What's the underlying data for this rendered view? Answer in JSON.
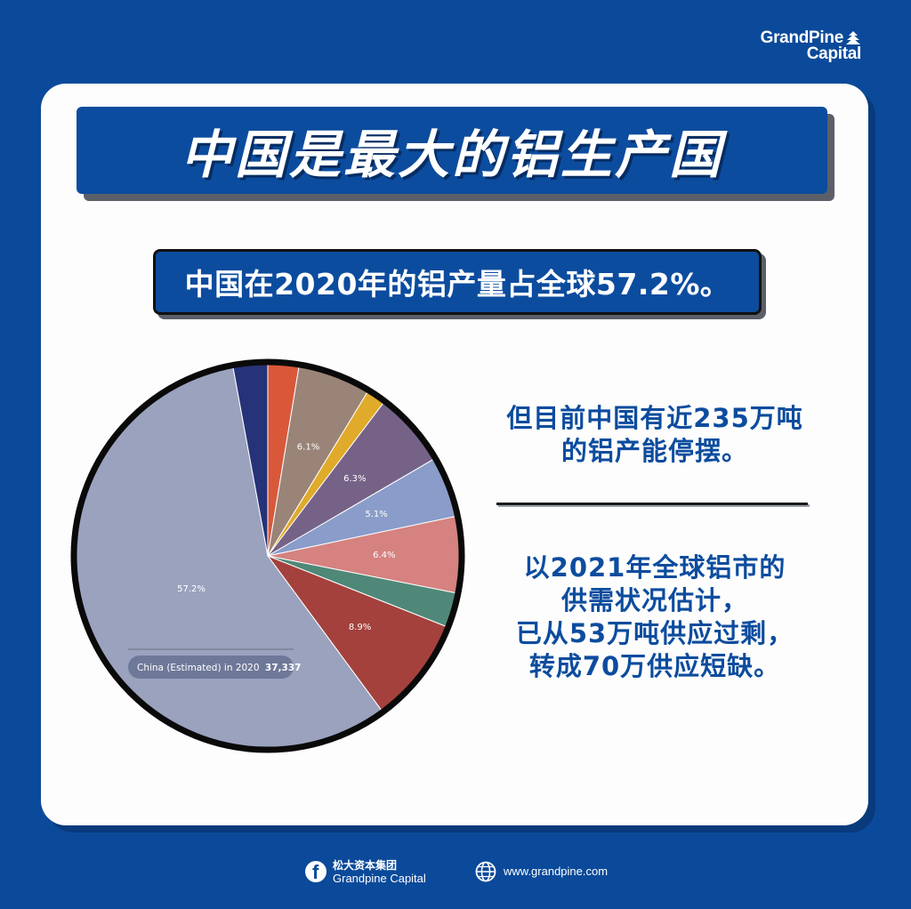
{
  "brand": {
    "line1": "GrandPine",
    "line2": "Capital"
  },
  "title": "中国是最大的铝生产国",
  "subtitle": "中国在2020年的铝产量占全球57.2%。",
  "notes": {
    "note1": [
      "但目前中国有近235万吨",
      "的铝产能停摆。"
    ],
    "note2": [
      "以2021年全球铝市的",
      "供需状况估计，",
      "已从53万吨供应过剩，",
      "转成70万供应短缺。"
    ]
  },
  "chart_data": {
    "type": "pie",
    "slices": [
      {
        "share": 2.6,
        "color": "#d9583a",
        "label": ""
      },
      {
        "share": 6.1,
        "color": "#9a8478",
        "label": "6.1%"
      },
      {
        "share": 1.6,
        "color": "#e0aa2a",
        "label": ""
      },
      {
        "share": 6.3,
        "color": "#766287",
        "label": "6.3%"
      },
      {
        "share": 5.1,
        "color": "#8a9cc9",
        "label": "5.1%"
      },
      {
        "share": 6.4,
        "color": "#d58280",
        "label": "6.4%"
      },
      {
        "share": 2.9,
        "color": "#4f8878",
        "label": ""
      },
      {
        "share": 8.9,
        "color": "#a4413d",
        "label": "8.9%"
      },
      {
        "share": 57.2,
        "color": "#9aa2be",
        "label": "57.2%"
      },
      {
        "share": 2.9,
        "color": "#273378",
        "label": ""
      }
    ],
    "tooltip": {
      "text": "China (Estimated) in 2020",
      "value": "37,337"
    }
  },
  "footer": {
    "org_cn": "松大资本集团",
    "org_en": "Grandpine Capital",
    "website": "www.grandpine.com"
  }
}
